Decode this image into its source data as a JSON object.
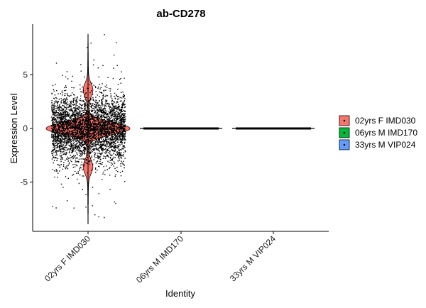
{
  "chart_data": {
    "type": "violin",
    "title": "ab-CD278",
    "xlabel": "Identity",
    "ylabel": "Expression Level",
    "categories": [
      "02yrs F IMD030",
      "06yrs M IMD170",
      "33yrs M VIP024"
    ],
    "ylim": [
      -9.2,
      9.2
    ],
    "yticks": [
      -5,
      0,
      5
    ],
    "grid": false,
    "legend_position": "right",
    "series": [
      {
        "name": "02yrs F IMD030",
        "color": "#F8766D",
        "min": -8.9,
        "max": 8.8,
        "median": 0.1,
        "spread": "wide",
        "points": "dense"
      },
      {
        "name": "06yrs M IMD170",
        "color": "#00BA38",
        "min": 0,
        "max": 0,
        "median": 0,
        "spread": "flat",
        "points": "dense"
      },
      {
        "name": "33yrs M VIP024",
        "color": "#619CFF",
        "min": 0,
        "max": 0,
        "median": 0,
        "spread": "flat",
        "points": "dense"
      }
    ]
  }
}
